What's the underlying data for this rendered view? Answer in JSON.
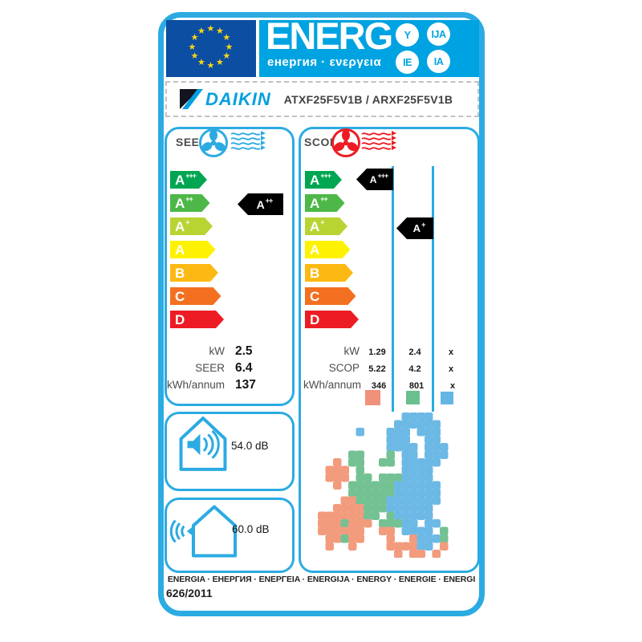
{
  "header": {
    "word": "ENERG",
    "subtext": "енергия · ενεργεια",
    "circles": [
      "Y",
      "IJA",
      "IE",
      "IA"
    ]
  },
  "brand": {
    "logo": "DAIKIN",
    "model": "ATXF25F5V1B / ARXF25F5V1B"
  },
  "scale": [
    {
      "letter": "A",
      "plus": "+++",
      "color": "#00a651"
    },
    {
      "letter": "A",
      "plus": "++",
      "color": "#4db848"
    },
    {
      "letter": "A",
      "plus": "+",
      "color": "#b8d433"
    },
    {
      "letter": "A",
      "plus": "",
      "color": "#fff200"
    },
    {
      "letter": "B",
      "plus": "",
      "color": "#fdb913"
    },
    {
      "letter": "C",
      "plus": "",
      "color": "#f37021"
    },
    {
      "letter": "D",
      "plus": "",
      "color": "#ed1c24"
    }
  ],
  "seer": {
    "title": "SEER",
    "rating": {
      "letter": "A",
      "plus": "++"
    },
    "values": [
      {
        "label": "kW",
        "value": "2.5"
      },
      {
        "label": "SEER",
        "value": "6.4"
      },
      {
        "label": "kWh/annum",
        "value": "137"
      }
    ]
  },
  "scop": {
    "title": "SCOP",
    "ratings": [
      {
        "letter": "A",
        "plus": "+++"
      },
      {
        "letter": "A",
        "plus": "+"
      }
    ],
    "rows": [
      {
        "label": "kW",
        "values": [
          "1.29",
          "2.4",
          "x"
        ]
      },
      {
        "label": "SCOP",
        "values": [
          "5.22",
          "4.2",
          "x"
        ]
      },
      {
        "label": "kWh/annum",
        "values": [
          "346",
          "801",
          "x"
        ]
      }
    ],
    "zone_colors": [
      "#f0917a",
      "#6abf8e",
      "#64b5e3"
    ]
  },
  "noise": {
    "indoor": "54.0 dB",
    "outdoor": "60.0 dB"
  },
  "footer": {
    "words": "ENERGIA · ЕНЕРГИЯ · ENEPΓEIA · ENERGIJA · ENERGY · ENERGIE · ENERGI",
    "regulation": "626/2011"
  },
  "colors": {
    "frame_blue": "#2babe2",
    "header_cyan": "#00a3e1",
    "eu_flag_blue": "#0b4ea2",
    "star_yellow": "#ffd617",
    "seer_accent": "#2babe2",
    "scop_accent": "#ed1c24",
    "black_arrow": "#000000"
  },
  "map": {
    "palette": {
      "S": "#f29b7d",
      "G": "#74c194",
      "B": "#6cb9e6"
    },
    "rows": [
      "...........BBBB.....",
      "..........BBBBBB....",
      ".....B...BBB.BBB....",
      ".........BBB..BB....",
      ".........BBBB.BBB...",
      "....GG...G.BB.BBB...",
      "..S.GG..GG.BBBBB....",
      ".SSS.G.....BBBB.....",
      ".SSS.GG.GGGBBBB.....",
      "..S.GGGGGGBBBBBB....",
      "....GGGGGGBBBBBB....",
      "...SSGGGGBBBBBBB....",
      "..SSSSGGGBBBBBB.....",
      "SSSSSSGG.GBBBBB.....",
      "SSSGSSS.GGGBB.BB....",
      "SSSSSS..SS.BBBB.G...",
      ".SSGSS...S..SBBBG...",
      ".S..S....SSSSBB.S...",
      "..........S.SS.S...."
    ]
  }
}
